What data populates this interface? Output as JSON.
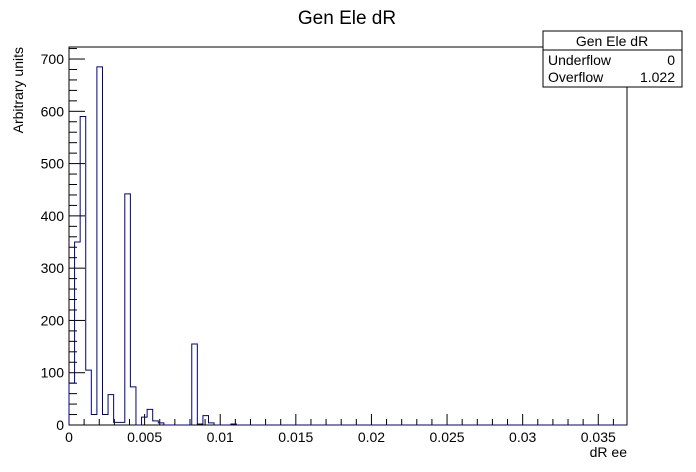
{
  "chart_data": {
    "type": "histogram",
    "title": "Gen Ele dR",
    "xlabel": "dR ee",
    "ylabel": "Arbitrary units",
    "xlim": [
      0,
      0.0369
    ],
    "ylim": [
      0,
      723
    ],
    "x_ticks": [
      0,
      0.005,
      0.01,
      0.015,
      0.02,
      0.025,
      0.03,
      0.035
    ],
    "x_tick_labels": [
      "0",
      "0.005",
      "0.01",
      "0.015",
      "0.02",
      "0.025",
      "0.03",
      "0.035"
    ],
    "y_ticks": [
      0,
      100,
      200,
      300,
      400,
      500,
      600,
      700
    ],
    "y_tick_labels": [
      "0",
      "100",
      "200",
      "300",
      "400",
      "500",
      "600",
      "700"
    ],
    "bin_width": 0.000369,
    "values": [
      80,
      350,
      590,
      105,
      20,
      685,
      20,
      58,
      5,
      5,
      442,
      73,
      0,
      15,
      30,
      8,
      4,
      0,
      0,
      0,
      0,
      0,
      155,
      2,
      18,
      4,
      0,
      0,
      0,
      2,
      0,
      0,
      0,
      0,
      0,
      0,
      0,
      0,
      0,
      0,
      0,
      0,
      0,
      0,
      0,
      0,
      0,
      0,
      0,
      0,
      0,
      0,
      0,
      0,
      0,
      0,
      0,
      0,
      0,
      0,
      0,
      0,
      0,
      0,
      0,
      0,
      0,
      0,
      0,
      0,
      0,
      0,
      0,
      0,
      0,
      0,
      0,
      0,
      0,
      0,
      0,
      0,
      0,
      0,
      0,
      0,
      0,
      0,
      0,
      0,
      0,
      0,
      0,
      0,
      0,
      0,
      0,
      0,
      0,
      0
    ],
    "line_color": "#000080",
    "grid": false,
    "stats_box": {
      "title": "Gen Ele dR",
      "rows": [
        {
          "label": "Underflow",
          "value": "0"
        },
        {
          "label": "Overflow",
          "value": "1.022"
        }
      ]
    }
  }
}
